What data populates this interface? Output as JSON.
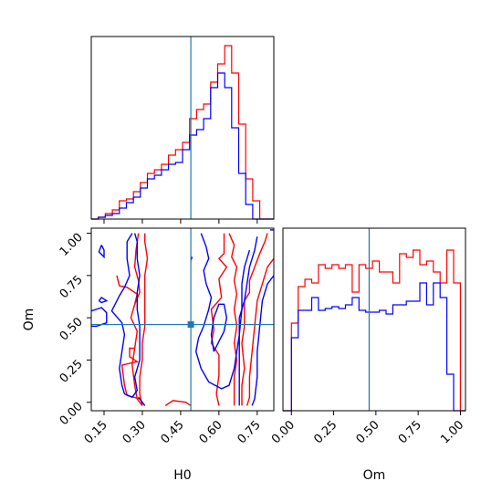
{
  "chart_data": [
    {
      "type": "histogram",
      "panel": "H0-marginal",
      "x_ticks": [
        0.15,
        0.3,
        0.45,
        0.6,
        0.75
      ],
      "x_bin_edges": [
        0.1,
        0.1275,
        0.155,
        0.1825,
        0.21,
        0.2375,
        0.265,
        0.2925,
        0.32,
        0.3475,
        0.375,
        0.4025,
        0.43,
        0.4575,
        0.485,
        0.5125,
        0.54,
        0.5675,
        0.595,
        0.6225,
        0.65,
        0.6775,
        0.705,
        0.7325,
        0.76,
        0.7875,
        0.815
      ],
      "vline": 0.49,
      "ylim": [
        0,
        1
      ],
      "series": [
        {
          "color": "#ff0000",
          "values": [
            0.0,
            0.01,
            0.03,
            0.05,
            0.1,
            0.11,
            0.15,
            0.2,
            0.25,
            0.27,
            0.3,
            0.35,
            0.38,
            0.42,
            0.55,
            0.6,
            0.63,
            0.75,
            0.85,
            0.95,
            0.8,
            0.52,
            0.22,
            0.1,
            0.0,
            0.0
          ]
        },
        {
          "color": "#0000ff",
          "values": [
            0.0,
            0.01,
            0.02,
            0.03,
            0.06,
            0.09,
            0.12,
            0.17,
            0.22,
            0.24,
            0.27,
            0.3,
            0.31,
            0.38,
            0.46,
            0.49,
            0.55,
            0.72,
            0.8,
            0.72,
            0.5,
            0.25,
            0.08,
            0.0,
            0.0,
            0.0
          ]
        }
      ]
    },
    {
      "type": "contour",
      "panel": "H0-Om-joint",
      "xlabel": "H0",
      "ylabel": "Om",
      "x_ticks": [
        0.15,
        0.3,
        0.45,
        0.6,
        0.75
      ],
      "y_ticks": [
        0.0,
        0.25,
        0.5,
        0.75,
        1.0
      ],
      "x_tick_labels": [
        "0.15",
        "0.30",
        "0.45",
        "0.60",
        "0.75"
      ],
      "y_tick_labels": [
        "0.00",
        "0.25",
        "0.50",
        "0.75",
        "1.00"
      ],
      "xlim": [
        0.1,
        0.815
      ],
      "ylim": [
        -0.05,
        1.03
      ],
      "marker": {
        "x": 0.49,
        "y": 0.46
      },
      "hline": 0.46,
      "vline": 0.49,
      "series": [
        {
          "color": "#ff0000",
          "contours": [
            [
              [
                0.285,
                1.0
              ],
              [
                0.275,
                0.9
              ],
              [
                0.27,
                0.8
              ],
              [
                0.285,
                0.72
              ],
              [
                0.29,
                0.65
              ],
              [
                0.27,
                0.58
              ],
              [
                0.255,
                0.5
              ],
              [
                0.28,
                0.42
              ],
              [
                0.27,
                0.32
              ],
              [
                0.26,
                0.22
              ],
              [
                0.27,
                0.1
              ],
              [
                0.28,
                0.02
              ],
              [
                0.3,
                -0.02
              ],
              [
                0.29,
                0.05
              ],
              [
                0.29,
                0.15
              ],
              [
                0.3,
                0.25
              ],
              [
                0.3,
                0.35
              ],
              [
                0.31,
                0.45
              ],
              [
                0.31,
                0.55
              ],
              [
                0.31,
                0.65
              ],
              [
                0.31,
                0.75
              ],
              [
                0.32,
                0.85
              ],
              [
                0.31,
                0.95
              ],
              [
                0.31,
                1.0
              ]
            ],
            [
              [
                0.27,
                0.32
              ],
              [
                0.25,
                0.32
              ],
              [
                0.25,
                0.27
              ],
              [
                0.28,
                0.24
              ],
              [
                0.22,
                0.22
              ],
              [
                0.23,
                0.1
              ],
              [
                0.24,
                0.04
              ],
              [
                0.29,
                0.02
              ]
            ],
            [
              [
                0.2,
                0.75
              ],
              [
                0.21,
                0.69
              ],
              [
                0.24,
                0.68
              ],
              [
                0.26,
                0.66
              ],
              [
                0.28,
                0.64
              ],
              [
                0.27,
                0.58
              ]
            ],
            [
              [
                0.39,
                -0.02
              ],
              [
                0.42,
                0.01
              ],
              [
                0.47,
                0.0
              ],
              [
                0.49,
                -0.02
              ]
            ],
            [
              [
                0.62,
                1.0
              ],
              [
                0.62,
                0.88
              ],
              [
                0.6,
                0.85
              ],
              [
                0.63,
                0.8
              ],
              [
                0.6,
                0.73
              ],
              [
                0.61,
                0.62
              ],
              [
                0.57,
                0.55
              ],
              [
                0.58,
                0.43
              ],
              [
                0.57,
                0.35
              ],
              [
                0.6,
                0.28
              ],
              [
                0.6,
                0.16
              ],
              [
                0.59,
                0.05
              ],
              [
                0.6,
                -0.02
              ]
            ],
            [
              [
                0.64,
                1.0
              ],
              [
                0.66,
                0.93
              ],
              [
                0.65,
                0.86
              ],
              [
                0.67,
                0.8
              ],
              [
                0.66,
                0.72
              ],
              [
                0.67,
                0.64
              ],
              [
                0.66,
                0.55
              ],
              [
                0.67,
                0.45
              ],
              [
                0.66,
                0.35
              ],
              [
                0.67,
                0.25
              ],
              [
                0.66,
                0.15
              ],
              [
                0.66,
                0.05
              ],
              [
                0.66,
                -0.02
              ]
            ],
            [
              [
                0.79,
                1.0
              ],
              [
                0.78,
                0.95
              ],
              [
                0.76,
                0.88
              ],
              [
                0.74,
                0.8
              ],
              [
                0.72,
                0.72
              ],
              [
                0.72,
                0.65
              ],
              [
                0.7,
                0.6
              ],
              [
                0.7,
                0.45
              ],
              [
                0.69,
                0.35
              ],
              [
                0.7,
                0.2
              ],
              [
                0.69,
                0.1
              ],
              [
                0.69,
                0.0
              ],
              [
                0.69,
                -0.02
              ]
            ],
            [
              [
                0.815,
                0.85
              ],
              [
                0.79,
                0.8
              ],
              [
                0.77,
                0.7
              ],
              [
                0.75,
                0.6
              ],
              [
                0.74,
                0.45
              ],
              [
                0.73,
                0.3
              ],
              [
                0.72,
                0.15
              ],
              [
                0.72,
                0.03
              ],
              [
                0.71,
                -0.02
              ]
            ]
          ]
        },
        {
          "color": "#0000ff",
          "contours": [
            [
              [
                0.14,
                0.93
              ],
              [
                0.13,
                0.89
              ],
              [
                0.15,
                0.86
              ],
              [
                0.15,
                0.9
              ],
              [
                0.14,
                0.93
              ]
            ],
            [
              [
                0.26,
                1.0
              ],
              [
                0.24,
                0.95
              ],
              [
                0.24,
                0.85
              ],
              [
                0.25,
                0.75
              ],
              [
                0.23,
                0.68
              ],
              [
                0.21,
                0.63
              ],
              [
                0.18,
                0.54
              ],
              [
                0.22,
                0.47
              ],
              [
                0.23,
                0.4
              ],
              [
                0.22,
                0.3
              ],
              [
                0.21,
                0.2
              ],
              [
                0.22,
                0.1
              ],
              [
                0.23,
                0.05
              ],
              [
                0.26,
                0.03
              ],
              [
                0.28,
                0.07
              ],
              [
                0.27,
                0.15
              ],
              [
                0.29,
                0.25
              ],
              [
                0.29,
                0.35
              ],
              [
                0.29,
                0.45
              ],
              [
                0.28,
                0.55
              ],
              [
                0.28,
                0.65
              ],
              [
                0.29,
                0.75
              ],
              [
                0.28,
                0.85
              ],
              [
                0.28,
                0.95
              ],
              [
                0.27,
                1.0
              ]
            ],
            [
              [
                0.1,
                0.54
              ],
              [
                0.14,
                0.56
              ],
              [
                0.16,
                0.53
              ],
              [
                0.16,
                0.47
              ],
              [
                0.12,
                0.45
              ],
              [
                0.1,
                0.45
              ]
            ],
            [
              [
                0.13,
                0.6
              ],
              [
                0.14,
                0.62
              ],
              [
                0.16,
                0.6
              ],
              [
                0.14,
                0.59
              ],
              [
                0.13,
                0.6
              ]
            ],
            [
              [
                0.285,
                0.03
              ],
              [
                0.31,
                -0.02
              ]
            ],
            [
              [
                0.49,
                0.85
              ],
              [
                0.495,
                0.86
              ],
              [
                0.49,
                0.84
              ]
            ],
            [
              [
                0.53,
                1.0
              ],
              [
                0.55,
                0.92
              ],
              [
                0.56,
                0.85
              ],
              [
                0.54,
                0.78
              ],
              [
                0.55,
                0.7
              ],
              [
                0.57,
                0.62
              ],
              [
                0.56,
                0.55
              ],
              [
                0.54,
                0.45
              ],
              [
                0.52,
                0.38
              ],
              [
                0.51,
                0.3
              ],
              [
                0.53,
                0.2
              ],
              [
                0.56,
                0.12
              ],
              [
                0.61,
                0.08
              ],
              [
                0.64,
                0.1
              ],
              [
                0.66,
                0.2
              ],
              [
                0.67,
                0.3
              ],
              [
                0.68,
                0.4
              ],
              [
                0.68,
                0.5
              ],
              [
                0.7,
                0.6
              ],
              [
                0.71,
                0.7
              ],
              [
                0.72,
                0.8
              ],
              [
                0.74,
                0.9
              ],
              [
                0.75,
                0.98
              ]
            ],
            [
              [
                0.58,
                0.3
              ],
              [
                0.6,
                0.36
              ],
              [
                0.62,
                0.42
              ],
              [
                0.63,
                0.5
              ],
              [
                0.62,
                0.58
              ],
              [
                0.6,
                0.58
              ],
              [
                0.58,
                0.5
              ],
              [
                0.57,
                0.4
              ],
              [
                0.58,
                0.3
              ]
            ],
            [
              [
                0.72,
                0.9
              ],
              [
                0.7,
                0.8
              ],
              [
                0.69,
                0.7
              ],
              [
                0.69,
                0.55
              ],
              [
                0.68,
                0.4
              ],
              [
                0.68,
                0.2
              ],
              [
                0.68,
                0.05
              ],
              [
                0.68,
                -0.02
              ]
            ],
            [
              [
                0.815,
                0.75
              ],
              [
                0.79,
                0.7
              ],
              [
                0.77,
                0.6
              ],
              [
                0.76,
                0.45
              ],
              [
                0.75,
                0.3
              ],
              [
                0.75,
                0.15
              ],
              [
                0.74,
                0.02
              ],
              [
                0.73,
                -0.02
              ]
            ],
            [
              [
                0.8,
                1.02
              ],
              [
                0.815,
                1.02
              ]
            ]
          ]
        }
      ]
    },
    {
      "type": "histogram",
      "panel": "Om-marginal",
      "xlabel": "Om",
      "x_ticks": [
        0.0,
        0.25,
        0.5,
        0.75,
        1.0
      ],
      "x_tick_labels": [
        "0.00",
        "0.25",
        "0.50",
        "0.75",
        "1.00"
      ],
      "x_bin_edges": [
        -0.05,
        0.0,
        0.04,
        0.08,
        0.12,
        0.16,
        0.2,
        0.24,
        0.28,
        0.32,
        0.36,
        0.4,
        0.44,
        0.48,
        0.52,
        0.56,
        0.6,
        0.64,
        0.68,
        0.72,
        0.76,
        0.8,
        0.84,
        0.88,
        0.92,
        0.96,
        1.0,
        1.03
      ],
      "vline": 0.46,
      "ylim": [
        0,
        1
      ],
      "series": [
        {
          "color": "#ff0000",
          "values": [
            0.0,
            0.48,
            0.68,
            0.72,
            0.7,
            0.8,
            0.78,
            0.8,
            0.78,
            0.8,
            0.65,
            0.8,
            0.78,
            0.82,
            0.76,
            0.76,
            0.7,
            0.86,
            0.84,
            0.88,
            0.8,
            0.82,
            0.76,
            0.7,
            0.88,
            0.7,
            0.0
          ]
        },
        {
          "color": "#0000ff",
          "values": [
            0.0,
            0.4,
            0.55,
            0.55,
            0.62,
            0.55,
            0.56,
            0.57,
            0.56,
            0.58,
            0.62,
            0.55,
            0.54,
            0.54,
            0.55,
            0.53,
            0.58,
            0.58,
            0.6,
            0.6,
            0.7,
            0.58,
            0.7,
            0.62,
            0.2,
            0.0,
            0.0
          ]
        }
      ]
    }
  ]
}
